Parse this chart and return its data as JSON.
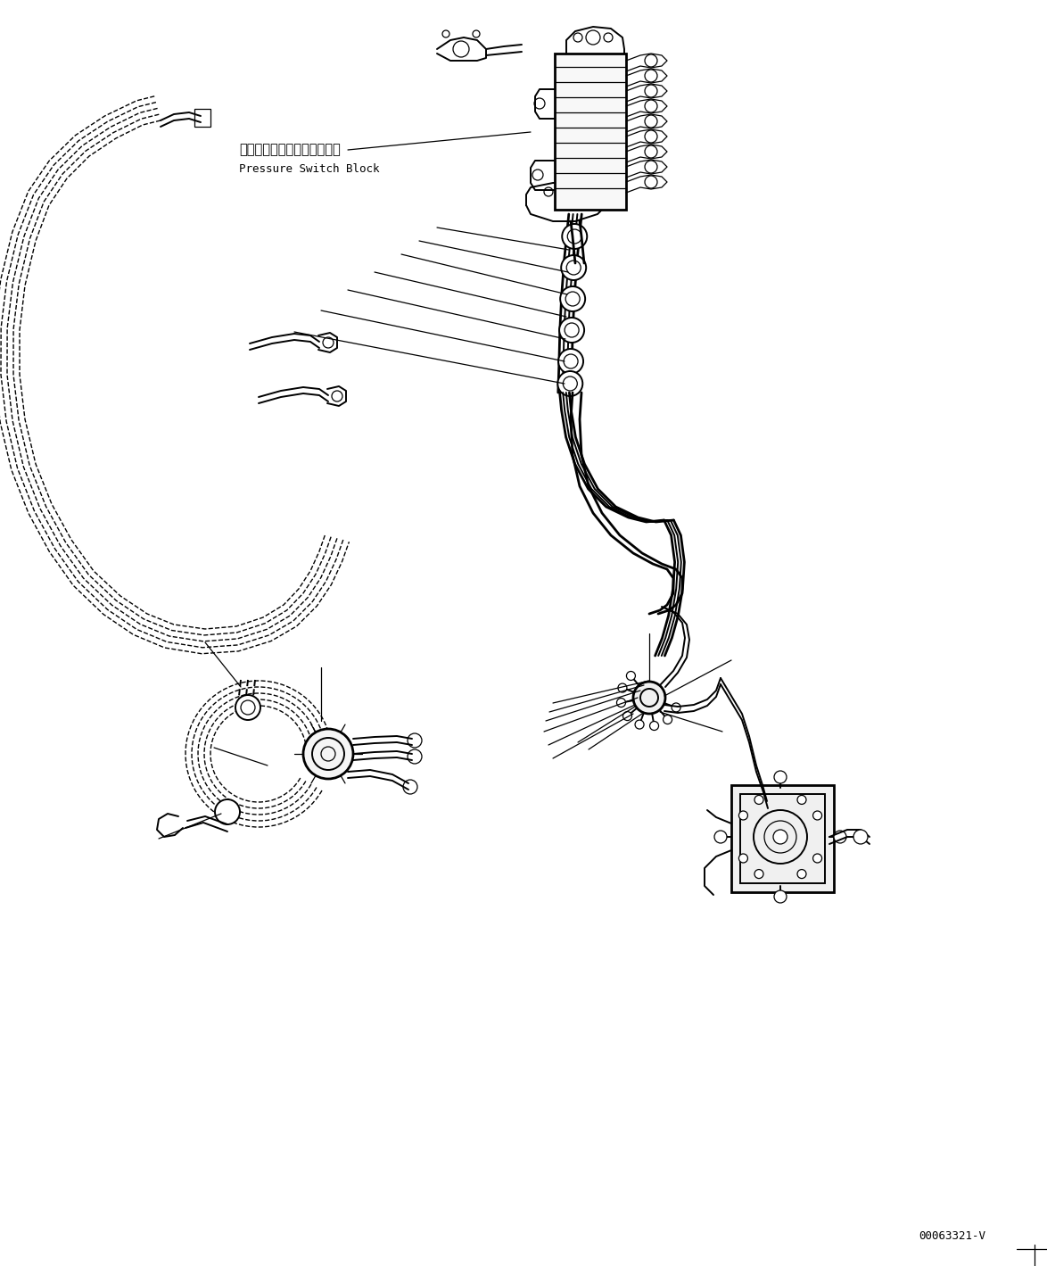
{
  "background_color": "#ffffff",
  "line_color": "#000000",
  "label_japanese": "プレッシャスイッチブロック",
  "label_english": "Pressure Switch Block",
  "doc_number": "00063321-V",
  "fig_width": 11.74,
  "fig_height": 14.19,
  "dpi": 100,
  "lw_thick": 2.0,
  "lw_med": 1.4,
  "lw_thin": 0.9,
  "lw_dash": 1.0
}
